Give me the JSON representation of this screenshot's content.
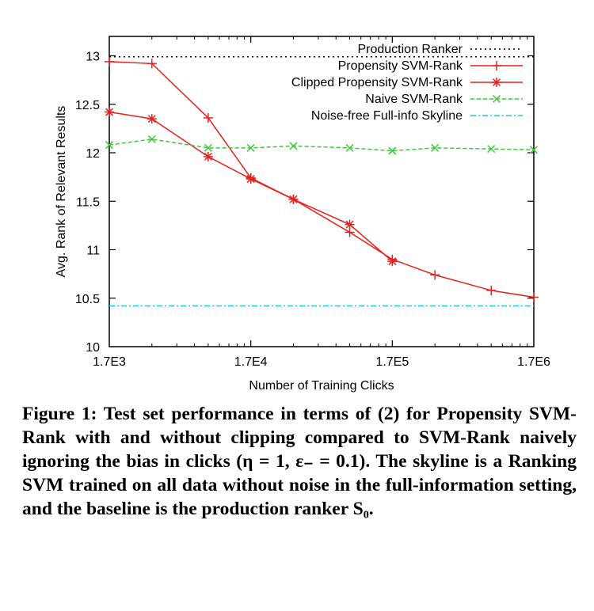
{
  "chart_data": {
    "type": "line",
    "xlabel": "Number of Training Clicks",
    "ylabel": "Avg. Rank of Relevant Results",
    "xscale": "log",
    "x_tick_labels": [
      "1.7E3",
      "1.7E4",
      "1.7E5",
      "1.7E6"
    ],
    "x_tick_values": [
      1700,
      17000,
      170000,
      1700000
    ],
    "y_ticks": [
      10,
      10.5,
      11,
      11.5,
      12,
      12.5,
      13
    ],
    "y_tick_labels": [
      "10",
      "10.5",
      "11",
      "11.5",
      "12",
      "12.5",
      "13"
    ],
    "xlim": [
      1700,
      1700000
    ],
    "ylim": [
      10,
      13.2
    ],
    "legend_position": "top-right",
    "series": [
      {
        "name": "Production Ranker",
        "color": "#000000",
        "style": "dotted",
        "marker": "none",
        "x": [
          1700,
          1700000
        ],
        "y": [
          12.99,
          12.99
        ]
      },
      {
        "name": "Propensity SVM-Rank",
        "color": "#e8201c",
        "style": "solid",
        "marker": "plus",
        "x": [
          1700,
          3400,
          8500,
          17000,
          34000,
          85000,
          170000,
          340000,
          850000,
          1700000
        ],
        "y": [
          12.94,
          12.92,
          12.36,
          11.74,
          11.52,
          11.18,
          10.9,
          10.74,
          10.58,
          10.51
        ]
      },
      {
        "name": "Clipped Propensity SVM-Rank",
        "color": "#e8201c",
        "style": "solid",
        "marker": "star",
        "x": [
          1700,
          3400,
          8500,
          17000,
          34000,
          85000,
          170000
        ],
        "y": [
          12.42,
          12.35,
          11.96,
          11.73,
          11.52,
          11.26,
          10.88
        ]
      },
      {
        "name": "Naive SVM-Rank",
        "color": "#3cc83c",
        "style": "dashed",
        "marker": "x",
        "x": [
          1700,
          3400,
          8500,
          17000,
          34000,
          85000,
          170000,
          340000,
          850000,
          1700000
        ],
        "y": [
          12.08,
          12.14,
          12.05,
          12.05,
          12.07,
          12.05,
          12.02,
          12.05,
          12.04,
          12.03
        ]
      },
      {
        "name": "Noise-free Full-info Skyline",
        "color": "#22c8d8",
        "style": "dashdot",
        "marker": "none",
        "x": [
          1700,
          1700000
        ],
        "y": [
          10.42,
          10.42
        ]
      }
    ]
  },
  "caption": {
    "label": "Figure 1:",
    "text": "Test set performance in terms of (2) for Propensity SVM-Rank with and without clipping compared to SVM-Rank naively ignoring the bias in clicks (η = 1, ε₋ = 0.1). The skyline is a Ranking SVM trained on all data without noise in the full-information setting, and the baseline is the production ranker S₀."
  }
}
